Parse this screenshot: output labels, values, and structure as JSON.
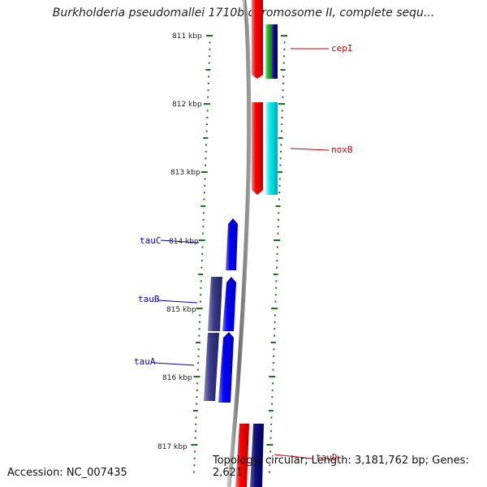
{
  "title": "Burkholderia pseudomallei 1710b chromosome II, complete sequ...",
  "accession": "Accession: NC_007435",
  "topology": "Topology: circular; Length: 3,181,762 bp; Genes: 2,621",
  "kbp_labels": [
    "811 kbp",
    "812 kbp",
    "813 kbp",
    "814 kbp",
    "815 kbp",
    "816 kbp",
    "817 kbp"
  ],
  "genes": [
    {
      "name": "cepI",
      "strand": "reverse",
      "color": "#cc0000"
    },
    {
      "name": "noxB",
      "strand": "reverse",
      "color": "#cc0000"
    },
    {
      "name": "tauC",
      "strand": "forward",
      "color": "#0000ee"
    },
    {
      "name": "tauB",
      "strand": "forward",
      "color": "#0000ee"
    },
    {
      "name": "tauA",
      "strand": "forward",
      "color": "#0000ee"
    },
    {
      "name": "tauD",
      "strand": "reverse",
      "color": "#cc0000"
    }
  ],
  "colors": {
    "backbone": "#808080",
    "tick": "#117a11",
    "red_gene": "#ee0000",
    "blue_gene": "#0000ee",
    "navy_gene": "#0c0c80",
    "slate_gene": "#3a3a8c",
    "cyan_gene": "#00e5e5",
    "green_gene": "#22bb22",
    "label_red": "#cc0000",
    "label_blue": "#0000cc"
  }
}
